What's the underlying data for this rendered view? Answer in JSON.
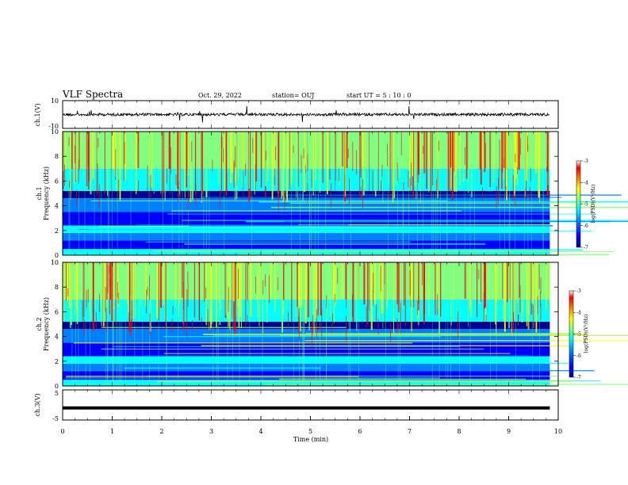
{
  "header": {
    "title": "VLF Spectra",
    "date": "Oct. 29, 2022",
    "station": "station= OUJ",
    "start": "start  UT =   5  : 10 : 0"
  },
  "colors": {
    "scale": [
      "#00008f",
      "#0000ff",
      "#0080ff",
      "#00ffff",
      "#80ff80",
      "#ffff00",
      "#ff8000",
      "#ff0000",
      "#800000"
    ]
  },
  "chart_data": [
    {
      "type": "line",
      "ylabel": "ch.1(V)",
      "ylim": [
        -10,
        10
      ],
      "yticks": [
        "10",
        "-10"
      ],
      "xlim": [
        0,
        10
      ],
      "baseline": 0,
      "description_values": "noisy trace around 0 V with occasional spikes"
    },
    {
      "type": "heatmap",
      "ylabel_ch": "ch.1",
      "ylabel": "Frequency (kHz)",
      "ylim": [
        0,
        10
      ],
      "yticks": [
        "0",
        "2",
        "4",
        "6",
        "8",
        "10"
      ],
      "xlim": [
        0,
        10
      ],
      "data_end_min": 9.83,
      "colorbar": {
        "label": "log(PSD)(V²/Hz)",
        "range": [
          -7,
          -3
        ],
        "ticks": [
          "-3",
          "-4",
          "-5",
          "-6",
          "-7"
        ]
      }
    },
    {
      "type": "heatmap",
      "ylabel_ch": "ch.2",
      "ylabel": "Frequency (kHz)",
      "ylim": [
        0,
        10
      ],
      "yticks": [
        "0",
        "2",
        "4",
        "6",
        "8",
        "10"
      ],
      "xlim": [
        0,
        10
      ],
      "data_end_min": 9.83,
      "colorbar": {
        "label": "log(PSD)(V²/Hz)",
        "range": [
          -7,
          -3
        ],
        "ticks": [
          "-3",
          "-4",
          "-5",
          "-6",
          "-7"
        ]
      }
    },
    {
      "type": "line",
      "ylabel": "ch.3(V)",
      "ylim": [
        -5,
        5
      ],
      "yticks": [
        "5",
        "-5"
      ],
      "xlim": [
        0,
        10
      ],
      "baseline": -1,
      "xlabel": "Time (min)",
      "xticks": [
        "0",
        "1",
        "2",
        "3",
        "4",
        "5",
        "6",
        "7",
        "8",
        "9",
        "10"
      ]
    }
  ]
}
